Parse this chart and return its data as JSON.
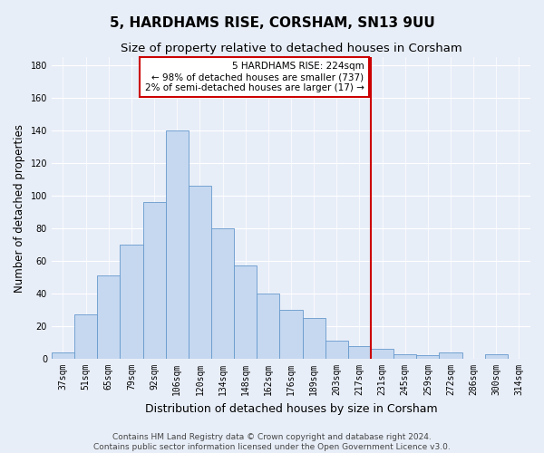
{
  "title": "5, HARDHAMS RISE, CORSHAM, SN13 9UU",
  "subtitle": "Size of property relative to detached houses in Corsham",
  "xlabel": "Distribution of detached houses by size in Corsham",
  "ylabel": "Number of detached properties",
  "bar_labels": [
    "37sqm",
    "51sqm",
    "65sqm",
    "79sqm",
    "92sqm",
    "106sqm",
    "120sqm",
    "134sqm",
    "148sqm",
    "162sqm",
    "176sqm",
    "189sqm",
    "203sqm",
    "217sqm",
    "231sqm",
    "245sqm",
    "259sqm",
    "272sqm",
    "286sqm",
    "300sqm",
    "314sqm"
  ],
  "bar_values": [
    4,
    27,
    51,
    70,
    96,
    140,
    106,
    80,
    57,
    40,
    30,
    25,
    11,
    8,
    6,
    3,
    2,
    4,
    0,
    3,
    0
  ],
  "bar_color": "#c5d8f0",
  "bar_edge_color": "#6699cc",
  "vline_x": 13.5,
  "vline_color": "#cc0000",
  "annotation_text": "5 HARDHAMS RISE: 224sqm\n← 98% of detached houses are smaller (737)\n2% of semi-detached houses are larger (17) →",
  "annotation_box_color": "#ffffff",
  "annotation_edge_color": "#cc0000",
  "ylim": [
    0,
    185
  ],
  "yticks": [
    0,
    20,
    40,
    60,
    80,
    100,
    120,
    140,
    160,
    180
  ],
  "background_color": "#e8eef8",
  "fig_background_color": "#e8eef8",
  "footer_text": "Contains HM Land Registry data © Crown copyright and database right 2024.\nContains public sector information licensed under the Open Government Licence v3.0.",
  "title_fontsize": 11,
  "subtitle_fontsize": 9.5,
  "xlabel_fontsize": 9,
  "ylabel_fontsize": 8.5,
  "tick_fontsize": 7,
  "footer_fontsize": 6.5,
  "annot_fontsize": 7.5
}
